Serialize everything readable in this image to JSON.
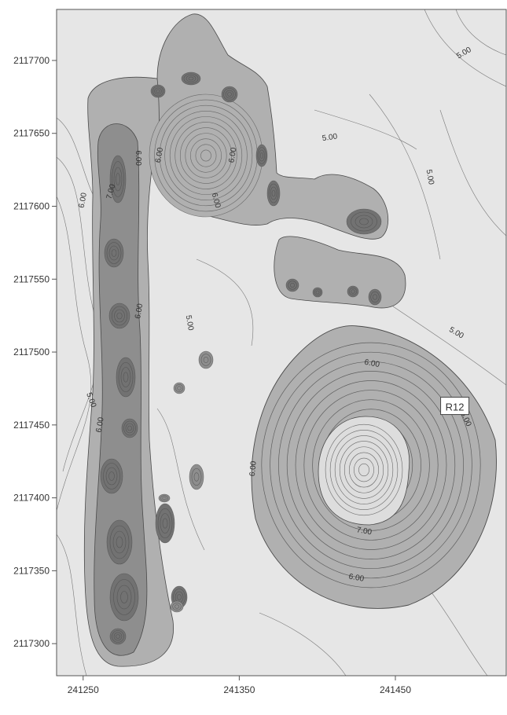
{
  "chart_data": {
    "type": "contour",
    "title": "",
    "xlabel": "",
    "ylabel": "",
    "xlim": [
      241233,
      241521
    ],
    "ylim": [
      2117278,
      2117735
    ],
    "grid": false,
    "x_ticks": [
      {
        "value": 241250,
        "label": "241250"
      },
      {
        "value": 241350,
        "label": "241350"
      },
      {
        "value": 241450,
        "label": "241450"
      }
    ],
    "y_ticks": [
      {
        "value": 2117700,
        "label": "2117700"
      },
      {
        "value": 2117650,
        "label": "2117650"
      },
      {
        "value": 2117600,
        "label": "2117600"
      },
      {
        "value": 2117550,
        "label": "2117550"
      },
      {
        "value": 2117500,
        "label": "2117500"
      },
      {
        "value": 2117450,
        "label": "2117450"
      },
      {
        "value": 2117400,
        "label": "2117400"
      },
      {
        "value": 2117350,
        "label": "2117350"
      },
      {
        "value": 2117300,
        "label": "2117300"
      }
    ],
    "contour_labels": [
      {
        "text": "5.00",
        "x": 241494,
        "y": 2117705,
        "rotate": -30
      },
      {
        "text": "5.00",
        "x": 241408,
        "y": 2117647,
        "rotate": -8
      },
      {
        "text": "5.00",
        "x": 241472,
        "y": 2117620,
        "rotate": 80
      },
      {
        "text": "5.00",
        "x": 241489,
        "y": 2117513,
        "rotate": 30
      },
      {
        "text": "5.00",
        "x": 241318,
        "y": 2117520,
        "rotate": 80
      },
      {
        "text": "5.00",
        "x": 241255,
        "y": 2117467,
        "rotate": 70
      },
      {
        "text": "6.00",
        "x": 241285,
        "y": 2117633,
        "rotate": 90
      },
      {
        "text": "6.00",
        "x": 241299,
        "y": 2117635,
        "rotate": -80
      },
      {
        "text": "6.00",
        "x": 241346,
        "y": 2117635,
        "rotate": -80
      },
      {
        "text": "6.00",
        "x": 241250,
        "y": 2117604,
        "rotate": -80
      },
      {
        "text": "6.00",
        "x": 241335,
        "y": 2117604,
        "rotate": 75
      },
      {
        "text": "7.00",
        "x": 241268,
        "y": 2117610,
        "rotate": -75
      },
      {
        "text": "6.00",
        "x": 241286,
        "y": 2117528,
        "rotate": -80
      },
      {
        "text": "6.00",
        "x": 241261,
        "y": 2117450,
        "rotate": -80
      },
      {
        "text": "6.00",
        "x": 241435,
        "y": 2117492,
        "rotate": 10
      },
      {
        "text": "6.00",
        "x": 241495,
        "y": 2117454,
        "rotate": 65
      },
      {
        "text": "6.00",
        "x": 241359,
        "y": 2117420,
        "rotate": -85
      },
      {
        "text": "7.00",
        "x": 241430,
        "y": 2117377,
        "rotate": 10
      },
      {
        "text": "6.00",
        "x": 241425,
        "y": 2117345,
        "rotate": 10
      }
    ],
    "annotations": [
      {
        "text": "R12",
        "x": 241480,
        "y": 2117462
      }
    ],
    "colors": {
      "low": "#e6e6e6",
      "mid": "#b0b0b0",
      "high": "#8e8e8e",
      "highest": "#727272",
      "contour": "#4a4a4a"
    }
  }
}
